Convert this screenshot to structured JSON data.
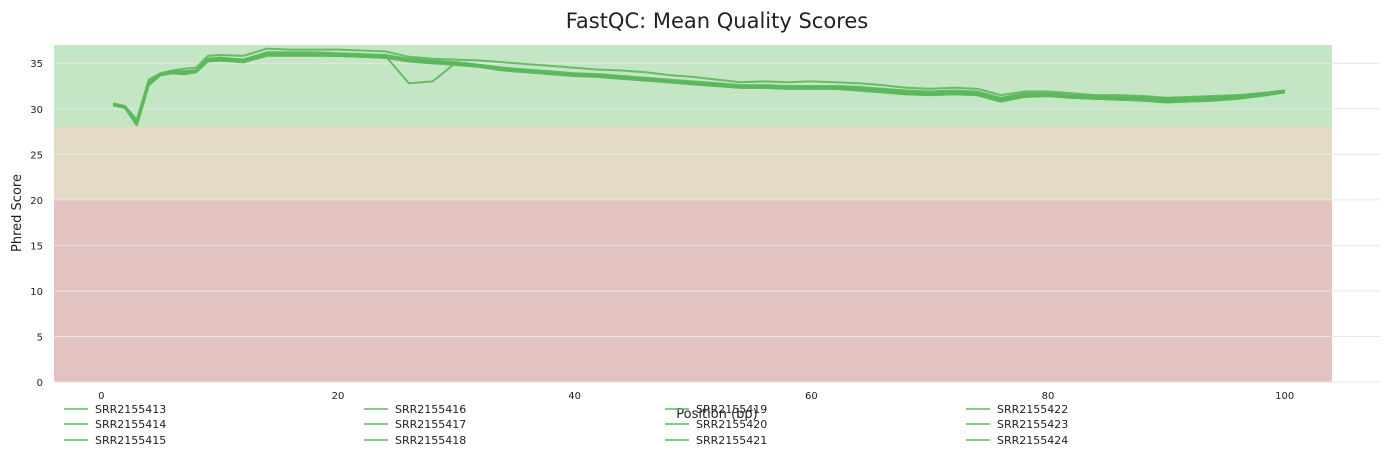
{
  "chart_data": {
    "type": "line",
    "title": "FastQC: Mean Quality Scores",
    "xlabel": "Position (bp)",
    "ylabel": "Phred Score",
    "xlim": [
      -4,
      104
    ],
    "ylim": [
      0,
      37
    ],
    "xticks": [
      0,
      20,
      40,
      60,
      80,
      100
    ],
    "yticks": [
      0,
      5,
      10,
      15,
      20,
      25,
      30,
      35
    ],
    "grid": "horizontal",
    "legend_position": "bottom",
    "bands": [
      {
        "from": 0,
        "to": 20,
        "color": "#e3c2c2"
      },
      {
        "from": 20,
        "to": 28,
        "color": "#e4dbc4"
      },
      {
        "from": 28,
        "to": 37,
        "color": "#c4e6c4"
      }
    ],
    "line_color": "#5cb85c",
    "x": [
      1,
      2,
      3,
      4,
      5,
      6,
      7,
      8,
      9,
      10,
      12,
      14,
      16,
      18,
      20,
      22,
      24,
      26,
      28,
      30,
      32,
      34,
      36,
      38,
      40,
      42,
      44,
      46,
      48,
      50,
      52,
      54,
      56,
      58,
      60,
      62,
      64,
      66,
      68,
      70,
      72,
      74,
      76,
      78,
      80,
      82,
      84,
      86,
      88,
      90,
      92,
      94,
      96,
      98,
      100
    ],
    "series": [
      {
        "name": "SRR2155413",
        "values": [
          30.5,
          30.2,
          28.3,
          32.8,
          33.8,
          34.0,
          34.0,
          34.1,
          35.4,
          35.5,
          35.3,
          36.0,
          36.0,
          36.0,
          36.0,
          35.9,
          35.8,
          35.4,
          35.2,
          35.0,
          34.7,
          34.3,
          34.1,
          33.9,
          33.7,
          33.6,
          33.4,
          33.2,
          33.0,
          32.8,
          32.6,
          32.4,
          32.4,
          32.3,
          32.3,
          32.3,
          32.2,
          32.0,
          31.8,
          31.7,
          31.8,
          31.7,
          31.0,
          31.4,
          31.5,
          31.3,
          31.2,
          31.1,
          31.1,
          30.9,
          31.0,
          31.1,
          31.3,
          31.6,
          31.9
        ]
      },
      {
        "name": "SRR2155414",
        "values": [
          30.4,
          30.1,
          28.2,
          32.6,
          33.7,
          33.9,
          33.8,
          34.0,
          35.2,
          35.3,
          35.1,
          35.9,
          35.9,
          35.9,
          35.8,
          35.7,
          35.6,
          35.2,
          35.0,
          34.9,
          34.6,
          34.2,
          34.0,
          33.8,
          33.6,
          33.5,
          33.3,
          33.1,
          32.9,
          32.7,
          32.5,
          32.3,
          32.3,
          32.2,
          32.2,
          32.2,
          32.0,
          31.8,
          31.6,
          31.5,
          31.6,
          31.5,
          30.8,
          31.3,
          31.4,
          31.2,
          31.1,
          31.0,
          30.9,
          30.7,
          30.8,
          30.9,
          31.1,
          31.4,
          31.8
        ]
      },
      {
        "name": "SRR2155415",
        "values": [
          30.6,
          30.3,
          28.8,
          33.2,
          33.9,
          34.2,
          34.4,
          34.5,
          35.8,
          35.9,
          35.8,
          36.6,
          36.5,
          36.5,
          36.5,
          36.4,
          36.3,
          35.7,
          35.5,
          35.4,
          35.3,
          35.1,
          34.9,
          34.7,
          34.5,
          34.3,
          34.2,
          34.0,
          33.7,
          33.5,
          33.2,
          32.9,
          33.0,
          32.9,
          33.0,
          32.9,
          32.8,
          32.6,
          32.3,
          32.2,
          32.3,
          32.2,
          31.5,
          31.9,
          31.9,
          31.7,
          31.5,
          31.5,
          31.4,
          31.2,
          31.3,
          31.4,
          31.5,
          31.7,
          32.0
        ]
      },
      {
        "name": "SRR2155416",
        "values": [
          30.5,
          30.2,
          28.4,
          32.9,
          33.8,
          34.1,
          34.1,
          34.2,
          35.5,
          35.6,
          35.4,
          36.1,
          36.1,
          36.0,
          36.0,
          35.9,
          35.8,
          32.8,
          33.0,
          35.1,
          34.8,
          34.5,
          34.2,
          34.0,
          33.8,
          33.7,
          33.5,
          33.3,
          33.1,
          32.9,
          32.7,
          32.5,
          32.5,
          32.4,
          32.4,
          32.4,
          32.3,
          32.1,
          31.9,
          31.8,
          31.9,
          31.8,
          31.1,
          31.6,
          31.6,
          31.4,
          31.3,
          31.2,
          31.2,
          31.0,
          31.1,
          31.2,
          31.4,
          31.7,
          32.0
        ]
      },
      {
        "name": "SRR2155417",
        "values": [
          30.5,
          30.2,
          28.3,
          32.7,
          33.8,
          34.0,
          34.0,
          34.1,
          35.3,
          35.4,
          35.2,
          36.0,
          36.0,
          36.0,
          35.9,
          35.8,
          35.7,
          35.3,
          35.1,
          35.0,
          34.7,
          34.3,
          34.1,
          33.9,
          33.7,
          33.6,
          33.4,
          33.2,
          33.0,
          32.8,
          32.6,
          32.4,
          32.4,
          32.3,
          32.3,
          32.3,
          32.1,
          31.9,
          31.7,
          31.6,
          31.7,
          31.6,
          30.9,
          31.4,
          31.5,
          31.3,
          31.2,
          31.1,
          31.0,
          30.8,
          30.9,
          31.0,
          31.2,
          31.5,
          31.9
        ]
      },
      {
        "name": "SRR2155418",
        "values": [
          30.4,
          30.1,
          28.2,
          32.6,
          33.7,
          33.9,
          33.9,
          34.0,
          35.3,
          35.4,
          35.2,
          35.9,
          35.9,
          35.9,
          35.9,
          35.8,
          35.7,
          35.3,
          35.1,
          34.9,
          34.7,
          34.3,
          34.1,
          33.9,
          33.7,
          33.6,
          33.4,
          33.2,
          33.0,
          32.8,
          32.6,
          32.4,
          32.4,
          32.3,
          32.3,
          32.3,
          32.1,
          31.9,
          31.7,
          31.6,
          31.7,
          31.6,
          30.9,
          31.4,
          31.5,
          31.3,
          31.2,
          31.1,
          31.0,
          30.8,
          30.9,
          31.0,
          31.2,
          31.5,
          31.9
        ]
      },
      {
        "name": "SRR2155419",
        "values": [
          30.5,
          30.2,
          28.4,
          32.8,
          33.8,
          34.1,
          34.0,
          34.1,
          35.4,
          35.5,
          35.3,
          36.0,
          36.0,
          36.0,
          36.0,
          35.9,
          35.8,
          35.4,
          35.2,
          35.0,
          34.7,
          34.4,
          34.1,
          33.9,
          33.8,
          33.6,
          33.4,
          33.2,
          33.0,
          32.8,
          32.6,
          32.4,
          32.4,
          32.3,
          32.3,
          32.3,
          32.2,
          32.0,
          31.8,
          31.7,
          31.8,
          31.7,
          31.0,
          31.5,
          31.5,
          31.3,
          31.2,
          31.1,
          31.1,
          30.9,
          31.0,
          31.1,
          31.3,
          31.6,
          31.9
        ]
      },
      {
        "name": "SRR2155420",
        "values": [
          30.4,
          30.1,
          28.2,
          32.6,
          33.7,
          33.9,
          33.8,
          34.0,
          35.2,
          35.3,
          35.1,
          35.8,
          35.8,
          35.8,
          35.8,
          35.7,
          35.6,
          35.2,
          35.0,
          34.8,
          34.6,
          34.2,
          34.0,
          33.8,
          33.6,
          33.5,
          33.3,
          33.1,
          32.9,
          32.7,
          32.5,
          32.3,
          32.3,
          32.2,
          32.2,
          32.2,
          32.0,
          31.8,
          31.6,
          31.5,
          31.6,
          31.5,
          30.8,
          31.3,
          31.4,
          31.2,
          31.1,
          31.0,
          30.9,
          30.7,
          30.8,
          30.9,
          31.1,
          31.4,
          31.8
        ]
      },
      {
        "name": "SRR2155421",
        "values": [
          30.5,
          30.2,
          28.5,
          32.9,
          33.8,
          34.1,
          34.1,
          34.2,
          35.5,
          35.6,
          35.4,
          36.2,
          36.2,
          36.2,
          36.1,
          36.0,
          35.9,
          35.5,
          35.3,
          35.1,
          34.8,
          34.5,
          34.3,
          34.1,
          33.9,
          33.8,
          33.6,
          33.4,
          33.2,
          33.0,
          32.8,
          32.6,
          32.6,
          32.5,
          32.5,
          32.5,
          32.4,
          32.2,
          32.0,
          31.9,
          32.0,
          31.9,
          31.2,
          31.7,
          31.7,
          31.5,
          31.4,
          31.3,
          31.3,
          31.1,
          31.2,
          31.3,
          31.4,
          31.7,
          32.0
        ]
      },
      {
        "name": "SRR2155422",
        "values": [
          30.4,
          30.1,
          28.3,
          32.7,
          33.7,
          34.0,
          33.9,
          34.1,
          35.3,
          35.4,
          35.2,
          35.9,
          35.9,
          35.9,
          35.9,
          35.8,
          35.7,
          35.3,
          35.1,
          34.9,
          34.7,
          34.3,
          34.1,
          33.9,
          33.7,
          33.6,
          33.4,
          33.2,
          33.0,
          32.8,
          32.6,
          32.4,
          32.4,
          32.3,
          32.3,
          32.3,
          32.1,
          31.9,
          31.7,
          31.6,
          31.7,
          31.6,
          30.9,
          31.4,
          31.5,
          31.3,
          31.2,
          31.1,
          31.0,
          30.8,
          30.9,
          31.0,
          31.2,
          31.5,
          31.9
        ]
      },
      {
        "name": "SRR2155423",
        "values": [
          30.5,
          30.2,
          28.4,
          32.8,
          33.8,
          34.0,
          34.0,
          34.1,
          35.4,
          35.5,
          35.3,
          36.0,
          36.0,
          36.0,
          36.0,
          35.9,
          35.8,
          35.4,
          35.2,
          35.0,
          34.8,
          34.4,
          34.2,
          34.0,
          33.8,
          33.7,
          33.5,
          33.3,
          33.1,
          32.9,
          32.7,
          32.5,
          32.5,
          32.4,
          32.4,
          32.4,
          32.2,
          32.0,
          31.8,
          31.7,
          31.8,
          31.7,
          31.1,
          31.5,
          31.6,
          31.4,
          31.3,
          31.2,
          31.1,
          30.9,
          31.0,
          31.1,
          31.3,
          31.6,
          31.9
        ]
      },
      {
        "name": "SRR2155424",
        "values": [
          30.4,
          30.1,
          28.3,
          32.7,
          33.7,
          33.9,
          33.9,
          34.0,
          35.3,
          35.4,
          35.2,
          35.9,
          35.9,
          35.9,
          35.8,
          35.7,
          35.6,
          35.2,
          35.0,
          34.9,
          34.6,
          34.3,
          34.0,
          33.8,
          33.7,
          33.5,
          33.3,
          33.1,
          32.9,
          32.7,
          32.5,
          32.3,
          32.3,
          32.2,
          32.2,
          32.2,
          32.1,
          31.9,
          31.7,
          31.6,
          31.7,
          31.6,
          30.9,
          31.4,
          31.4,
          31.2,
          31.1,
          31.0,
          31.0,
          30.8,
          30.9,
          31.0,
          31.2,
          31.5,
          31.8
        ]
      }
    ]
  }
}
